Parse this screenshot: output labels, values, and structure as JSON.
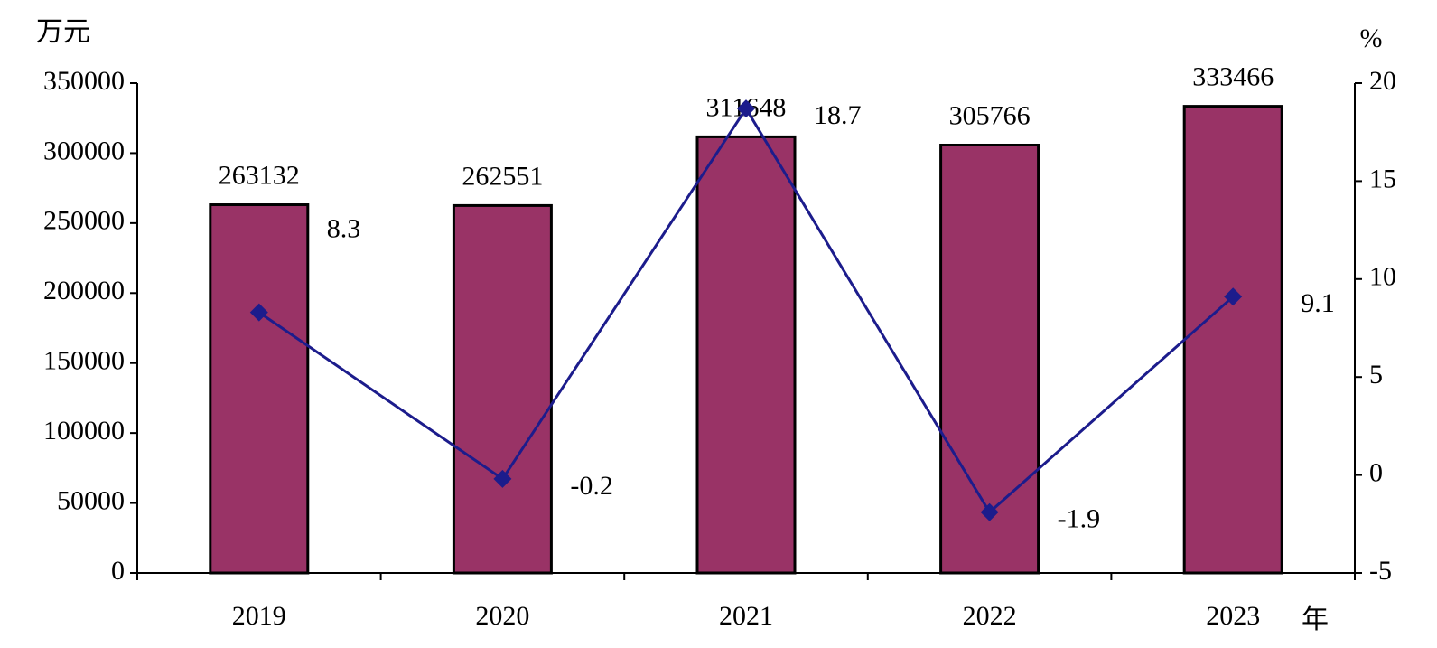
{
  "chart_data": {
    "type": "bar",
    "y_label": "万元",
    "y2_label": "%",
    "x_label": "年",
    "categories": [
      "2019",
      "2020",
      "2021",
      "2022",
      "2023"
    ],
    "series": [
      {
        "color": "#993366",
        "values": [
          263132,
          262551,
          311648,
          305766,
          333466
        ]
      },
      {
        "type": "line",
        "axis": "y2",
        "color": "#1c1c8c",
        "values": [
          8.3,
          -0.2,
          18.7,
          -1.9,
          9.1
        ]
      }
    ],
    "ylim": [
      0,
      350000
    ],
    "yticks": [
      0,
      50000,
      100000,
      150000,
      200000,
      250000,
      300000,
      350000
    ],
    "y2lim": [
      -5,
      20
    ],
    "y2ticks": [
      -5,
      0,
      5,
      10,
      15,
      20
    ],
    "grid": false
  }
}
